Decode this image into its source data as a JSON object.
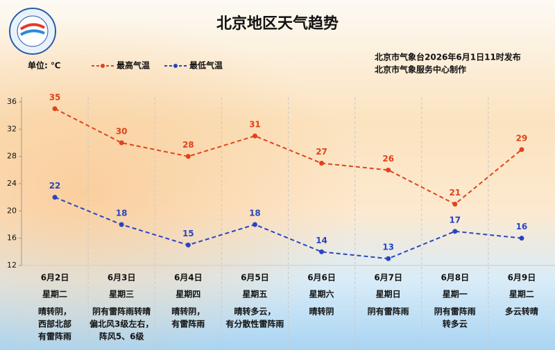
{
  "chart_data": {
    "type": "line",
    "title": "北京地区天气趋势",
    "unit_label": "单位: ℃",
    "publisher": [
      "北京市气象台2026年6月1日11时发布",
      "北京市气象服务中心制作"
    ],
    "categories": [
      "6月2日",
      "6月3日",
      "6月4日",
      "6月5日",
      "6月6日",
      "6月7日",
      "6月8日",
      "6月9日"
    ],
    "weekdays": [
      "星期二",
      "星期三",
      "星期四",
      "星期五",
      "星期六",
      "星期日",
      "星期一",
      "星期二"
    ],
    "weather": [
      [
        "晴转阴，",
        "西部北部",
        "有雷阵雨"
      ],
      [
        "阴有雷阵雨转晴",
        "偏北风3级左右，",
        "阵风5、6级"
      ],
      [
        "晴转阴，",
        "有雷阵雨"
      ],
      [
        "晴转多云，",
        "有分散性雷阵雨"
      ],
      [
        "晴转阴"
      ],
      [
        "阴有雷阵雨"
      ],
      [
        "阴有雷阵雨",
        "转多云"
      ],
      [
        "多云转晴"
      ]
    ],
    "series": [
      {
        "name": "最高气温",
        "color": "#e0421a",
        "values": [
          35,
          30,
          28,
          31,
          27,
          26,
          21,
          29
        ]
      },
      {
        "name": "最低气温",
        "color": "#2745c0",
        "values": [
          22,
          18,
          15,
          18,
          14,
          13,
          17,
          16
        ]
      }
    ],
    "ylim": [
      12,
      36
    ],
    "yticks": [
      12,
      16,
      20,
      24,
      28,
      32,
      36
    ],
    "grid": false
  }
}
